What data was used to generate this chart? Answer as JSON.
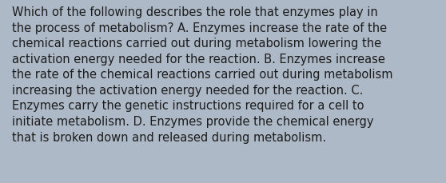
{
  "background_color": "#adb9c7",
  "text_color": "#1c1c1c",
  "lines": [
    "Which of the following describes the role that enzymes play in",
    "the process of metabolism? A. Enzymes increase the rate of the",
    "chemical reactions carried out during metabolism lowering the",
    "activation energy needed for the reaction. B. Enzymes increase",
    "the rate of the chemical reactions carried out during metabolism",
    "increasing the activation energy needed for the reaction. C.",
    "Enzymes carry the genetic instructions required for a cell to",
    "initiate metabolism. D. Enzymes provide the chemical energy",
    "that is broken down and released during metabolism."
  ],
  "font_size": 10.5,
  "font_family": "DejaVu Sans",
  "fig_width": 5.58,
  "fig_height": 2.3,
  "dpi": 100
}
